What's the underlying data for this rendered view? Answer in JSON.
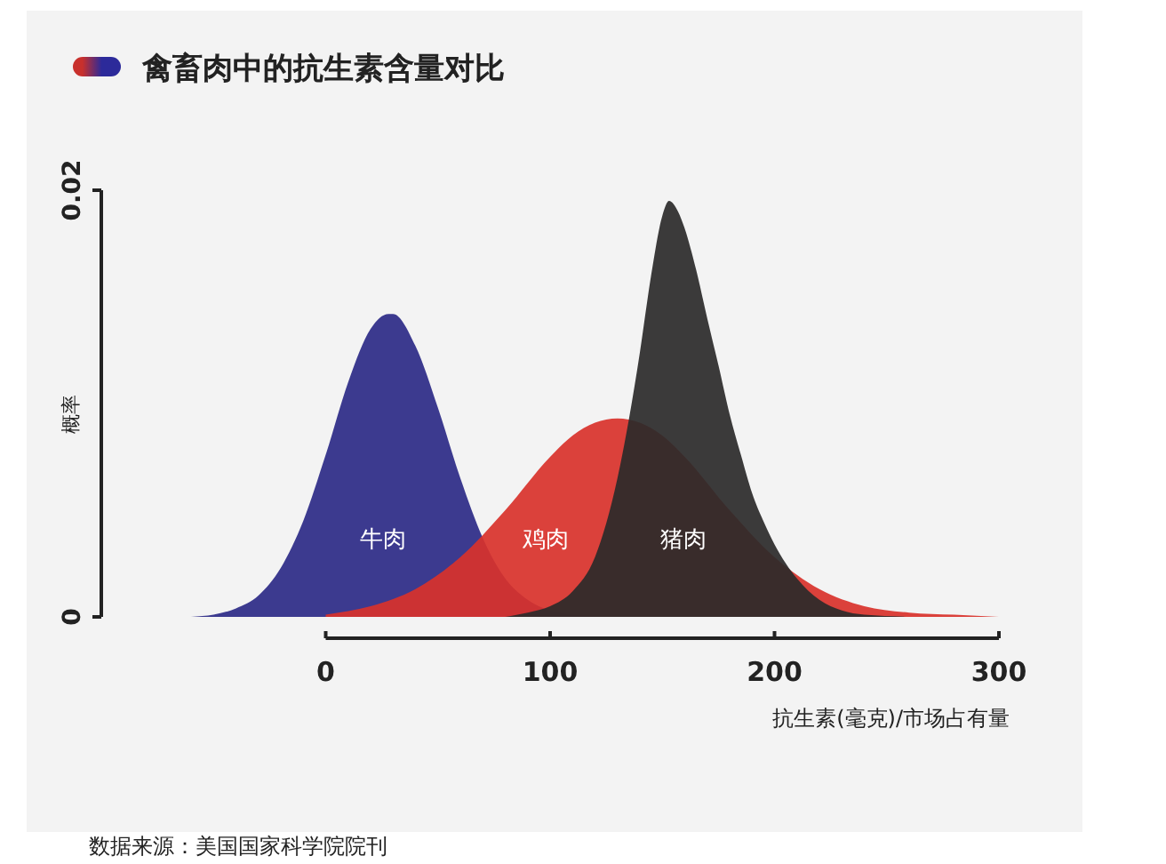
{
  "chart_data": {
    "type": "area",
    "title": "禽畜肉中的抗生素含量对比",
    "xlabel": "抗生素(毫克)/市场占有量",
    "ylabel": "概率",
    "xlim": [
      -100,
      300
    ],
    "xticks": [
      0,
      100,
      200,
      300
    ],
    "ylim": [
      0,
      0.02
    ],
    "yticks": [
      0,
      0.02
    ],
    "series": [
      {
        "name": "牛肉",
        "color": "#2c2a87",
        "x": [
          -60,
          -50,
          -40,
          -30,
          -20,
          -10,
          0,
          10,
          20,
          28,
          30,
          40,
          50,
          60,
          70,
          80,
          90,
          100,
          110,
          120
        ],
        "values": [
          0,
          0.0001,
          0.0004,
          0.001,
          0.0023,
          0.0045,
          0.0076,
          0.011,
          0.0135,
          0.0142,
          0.0142,
          0.0127,
          0.0098,
          0.0065,
          0.0037,
          0.0018,
          0.0008,
          0.0003,
          0.0001,
          0
        ]
      },
      {
        "name": "鸡肉",
        "color": "#d9322b",
        "x": [
          0,
          20,
          40,
          60,
          80,
          100,
          110,
          120,
          130,
          140,
          150,
          160,
          180,
          200,
          220,
          240,
          260,
          280,
          300
        ],
        "values": [
          0.0001,
          0.0005,
          0.0013,
          0.0028,
          0.005,
          0.0075,
          0.0085,
          0.0091,
          0.0093,
          0.0091,
          0.0085,
          0.0075,
          0.005,
          0.0028,
          0.0013,
          0.0005,
          0.0002,
          0.0001,
          0
        ]
      },
      {
        "name": "猪肉",
        "color": "#2b2a2a",
        "x": [
          80,
          90,
          100,
          110,
          120,
          130,
          135,
          140,
          145,
          150,
          153,
          157,
          160,
          165,
          170,
          175,
          180,
          185,
          190,
          195,
          200,
          210,
          220,
          230,
          240,
          260
        ],
        "values": [
          0,
          0.0002,
          0.0005,
          0.0012,
          0.0028,
          0.0065,
          0.0092,
          0.0124,
          0.016,
          0.0188,
          0.0195,
          0.019,
          0.0182,
          0.0163,
          0.014,
          0.0118,
          0.0095,
          0.0076,
          0.0058,
          0.0045,
          0.0034,
          0.0018,
          0.0008,
          0.0003,
          0.0001,
          0
        ]
      }
    ],
    "annotations": [
      "数据来源：美国国家科学院院刊"
    ]
  }
}
